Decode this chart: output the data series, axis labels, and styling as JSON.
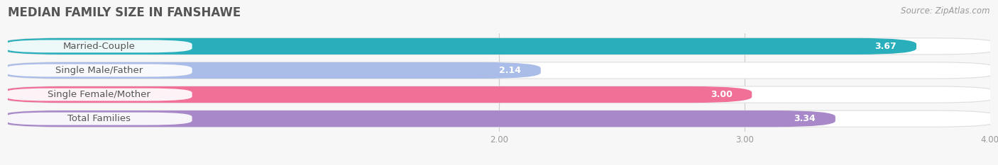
{
  "title": "MEDIAN FAMILY SIZE IN FANSHAWE",
  "source": "Source: ZipAtlas.com",
  "categories": [
    "Married-Couple",
    "Single Male/Father",
    "Single Female/Mother",
    "Total Families"
  ],
  "values": [
    3.67,
    2.14,
    3.0,
    3.34
  ],
  "bar_colors": [
    "#29AEBB",
    "#AABCE8",
    "#F07098",
    "#A888C8"
  ],
  "x_min": 0.0,
  "x_max": 4.0,
  "x_ticks": [
    2.0,
    3.0,
    4.0
  ],
  "x_tick_labels": [
    "2.00",
    "3.00",
    "4.00"
  ],
  "bar_height": 0.62,
  "background_color": "#f7f7f7",
  "container_color": "#e8e8e8",
  "title_fontsize": 12,
  "source_fontsize": 8.5,
  "label_fontsize": 9.5,
  "value_fontsize": 9
}
